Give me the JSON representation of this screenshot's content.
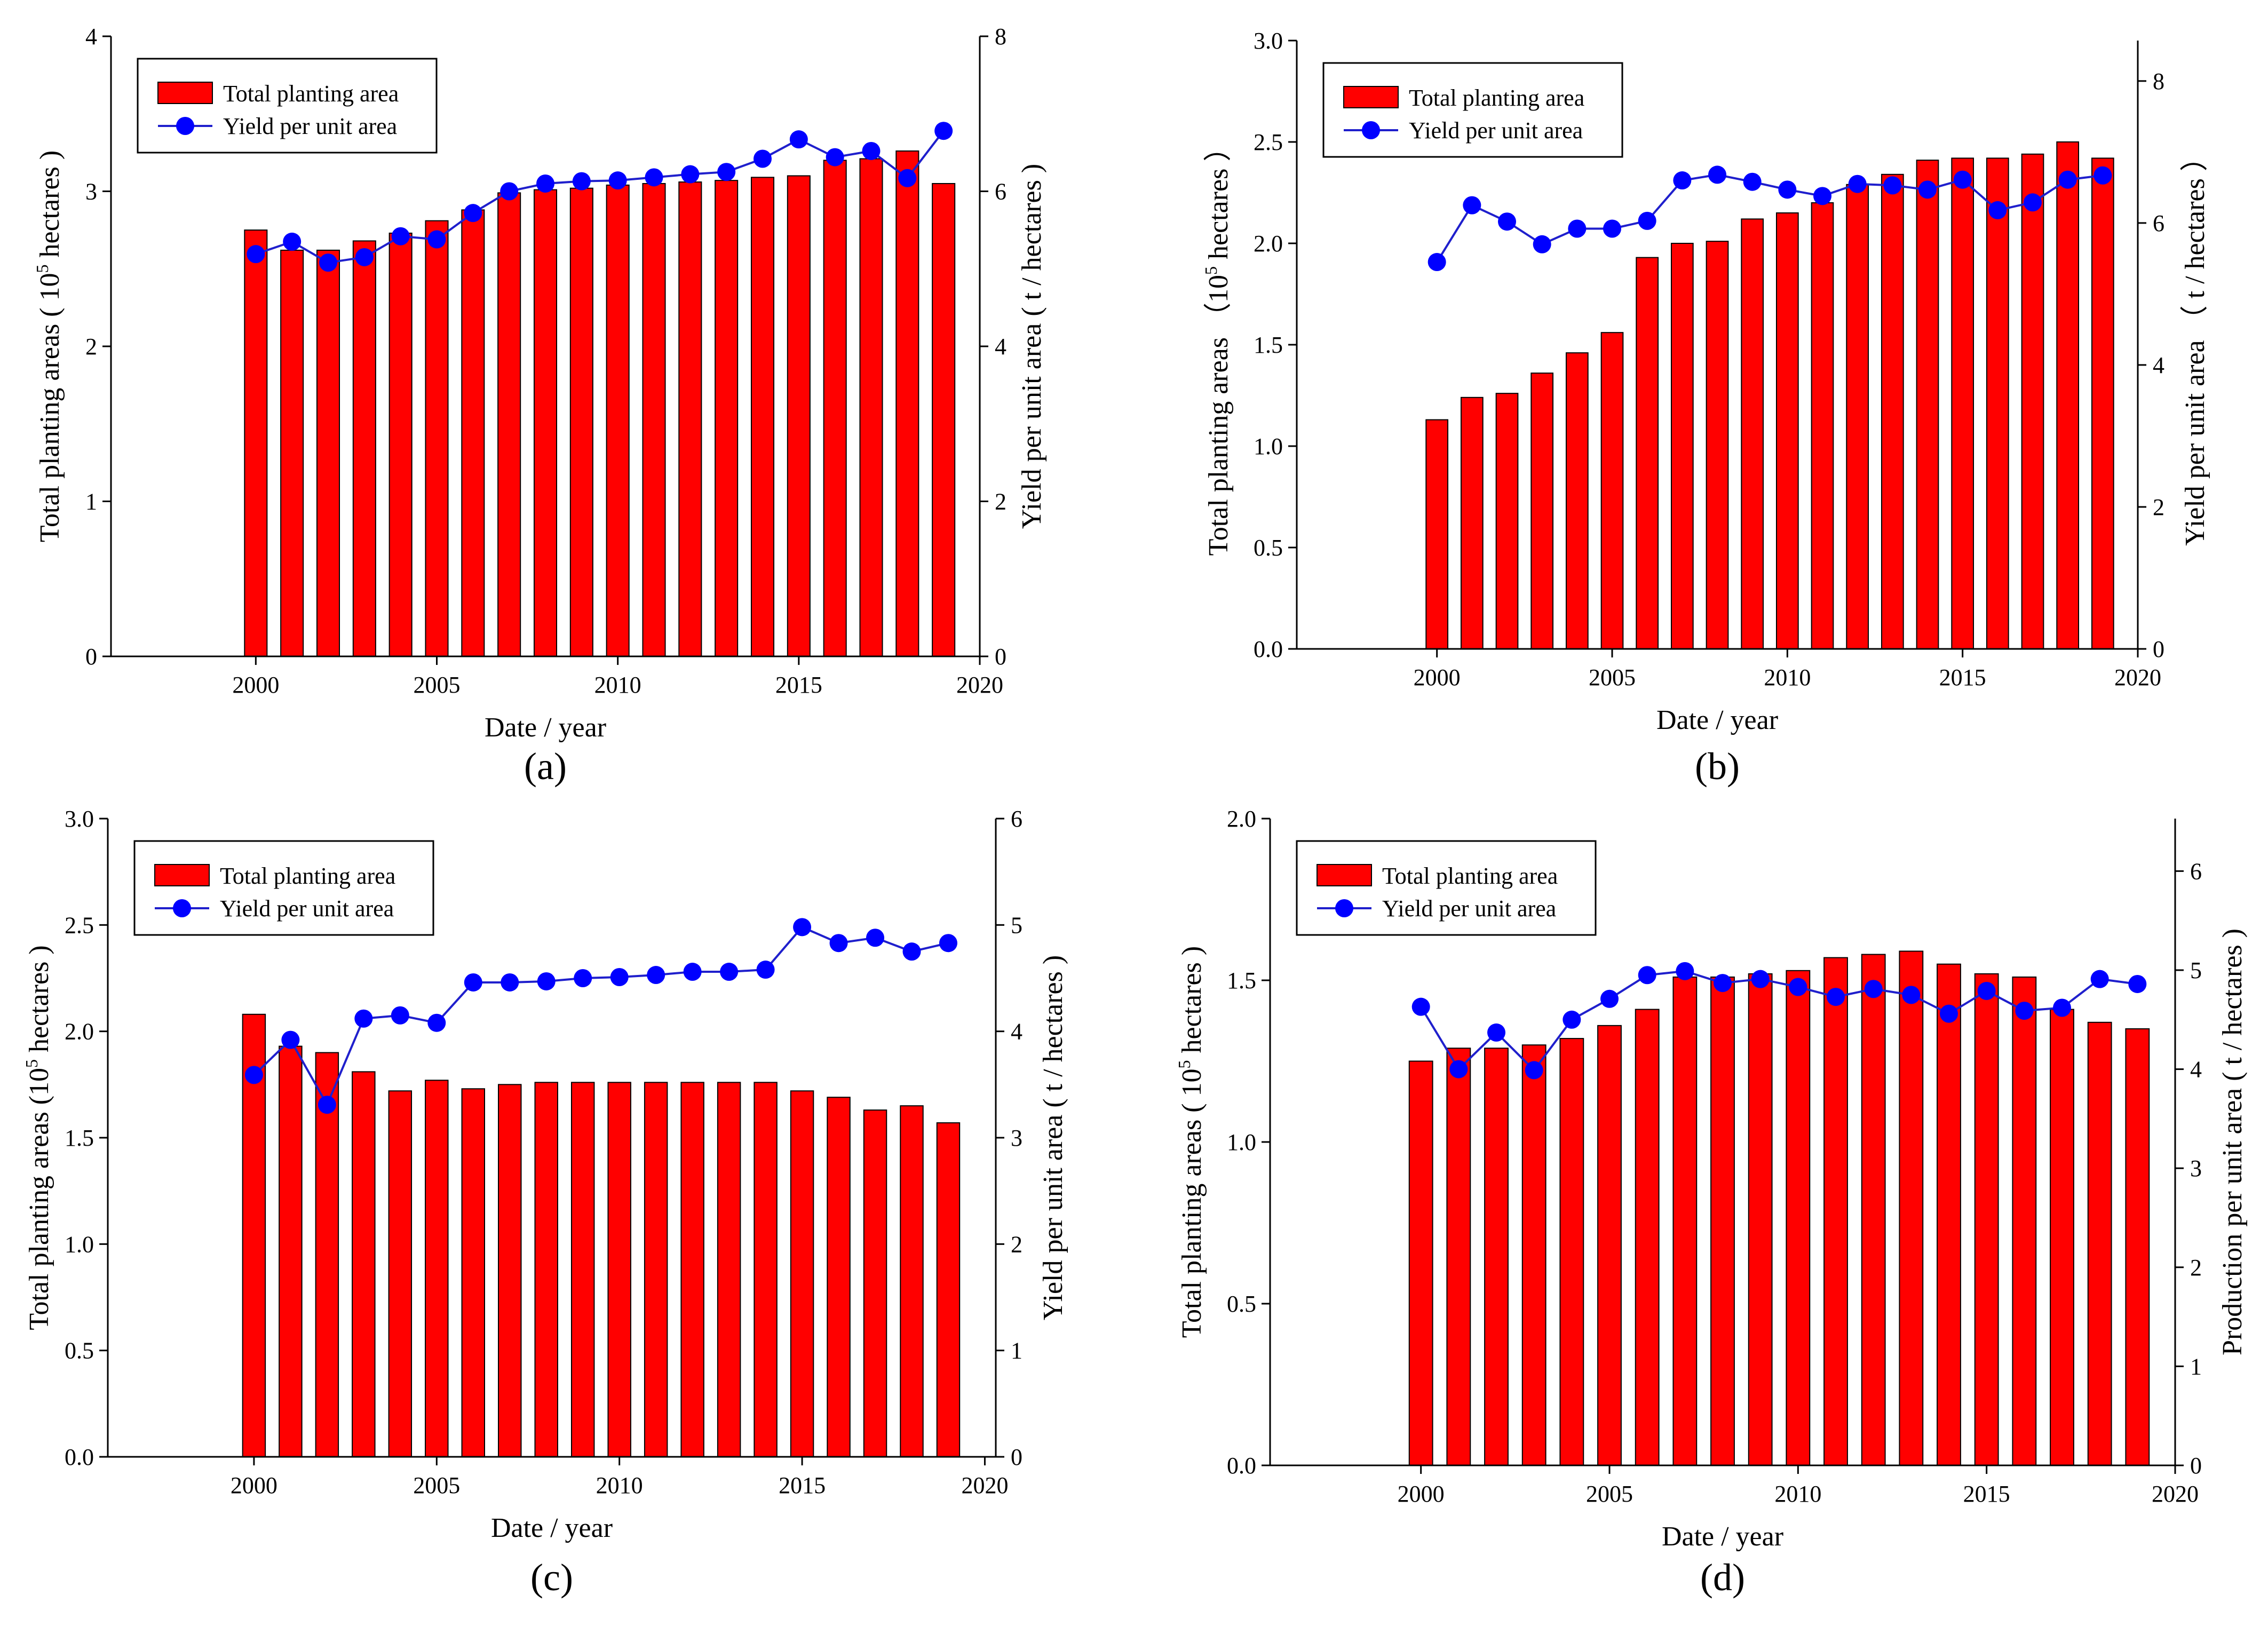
{
  "colors": {
    "bar": "#ff0000",
    "bar_edge": "#000000",
    "line": "#1f1fcc",
    "marker": "#0000ff"
  },
  "chart_data": [
    {
      "panel_label": "(a)",
      "type": "bar+line",
      "x": [
        2000,
        2001,
        2002,
        2003,
        2004,
        2005,
        2006,
        2007,
        2008,
        2009,
        2010,
        2011,
        2012,
        2013,
        2014,
        2015,
        2016,
        2017,
        2018,
        2019
      ],
      "xlabel": "Date / year",
      "xlim": [
        1996,
        2020
      ],
      "xticks": [
        2000,
        2005,
        2010,
        2015,
        2020
      ],
      "ylabel_left_pre": "Total planting areas ( 10",
      "ylabel_left_sup": "5",
      "ylabel_left_post": " hectares )",
      "ylabel_right": "Yield per unit area ( t / hectares )",
      "ylim_left": [
        0,
        4
      ],
      "yticks_left": [
        "0",
        "1",
        "2",
        "3",
        "4"
      ],
      "ylim_right": [
        0,
        8
      ],
      "yticks_right": [
        "0",
        "2",
        "4",
        "6",
        "8"
      ],
      "legend": [
        "Total  planting area",
        "Yield per unit area"
      ],
      "legend_position": "top-left",
      "series": [
        {
          "name": "Total  planting area",
          "axis": "left",
          "kind": "bar",
          "values": [
            2.75,
            2.62,
            2.62,
            2.68,
            2.73,
            2.81,
            2.88,
            2.99,
            3.01,
            3.02,
            3.04,
            3.05,
            3.06,
            3.07,
            3.09,
            3.1,
            3.2,
            3.21,
            3.26,
            3.05
          ]
        },
        {
          "name": "Yield per unit area",
          "axis": "right",
          "kind": "line",
          "values": [
            5.19,
            5.35,
            5.08,
            5.15,
            5.42,
            5.38,
            5.72,
            6.0,
            6.1,
            6.13,
            6.14,
            6.18,
            6.22,
            6.25,
            6.42,
            6.67,
            6.44,
            6.52,
            6.17,
            6.78
          ]
        }
      ]
    },
    {
      "panel_label": "(b)",
      "type": "bar+line",
      "x": [
        2000,
        2001,
        2002,
        2003,
        2004,
        2005,
        2006,
        2007,
        2008,
        2009,
        2010,
        2011,
        2012,
        2013,
        2014,
        2015,
        2016,
        2017,
        2018,
        2019
      ],
      "xlabel": "Date / year",
      "xlim": [
        1996,
        2020
      ],
      "xticks": [
        2000,
        2005,
        2010,
        2015,
        2020
      ],
      "ylabel_left_pre": "Total planting areas  （10",
      "ylabel_left_sup": "5",
      "ylabel_left_post": " hectares  ）",
      "ylabel_right": "Yield per unit area  （ t / hectares  ）",
      "ylim_left": [
        0,
        3
      ],
      "yticks_left": [
        "0.0",
        "0.5",
        "1.0",
        "1.5",
        "2.0",
        "2.5",
        "3.0"
      ],
      "ylim_right": [
        0,
        8.57
      ],
      "yticks_right": [
        "0",
        "2",
        "4",
        "6",
        "8"
      ],
      "legend": [
        "Total  planting area",
        "Yield per unit area"
      ],
      "legend_position": "top-left",
      "series": [
        {
          "name": "Total  planting area",
          "axis": "left",
          "kind": "bar",
          "values": [
            1.13,
            1.24,
            1.26,
            1.36,
            1.46,
            1.56,
            1.93,
            2.0,
            2.01,
            2.12,
            2.15,
            2.2,
            2.29,
            2.34,
            2.41,
            2.42,
            2.42,
            2.44,
            2.5,
            2.42
          ]
        },
        {
          "name": "Yield per unit area",
          "axis": "right",
          "kind": "line",
          "values": [
            5.45,
            6.25,
            6.02,
            5.7,
            5.92,
            5.92,
            6.03,
            6.6,
            6.68,
            6.58,
            6.47,
            6.38,
            6.55,
            6.53,
            6.47,
            6.61,
            6.18,
            6.29,
            6.61,
            6.67
          ]
        }
      ]
    },
    {
      "panel_label": "(c)",
      "type": "bar+line",
      "x": [
        2000,
        2001,
        2002,
        2003,
        2004,
        2005,
        2006,
        2007,
        2008,
        2009,
        2010,
        2011,
        2012,
        2013,
        2014,
        2015,
        2016,
        2017,
        2018,
        2019
      ],
      "xlabel": "Date / year",
      "xlim": [
        1996,
        2020.3
      ],
      "xticks": [
        2000,
        2005,
        2010,
        2015,
        2020
      ],
      "ylabel_left_pre": "Total planting areas (10",
      "ylabel_left_sup": "5",
      "ylabel_left_post": " hectares )",
      "ylabel_right": "Yield per unit area ( t / hectares )",
      "ylim_left": [
        0,
        3
      ],
      "yticks_left": [
        "0.0",
        "0.5",
        "1.0",
        "1.5",
        "2.0",
        "2.5",
        "3.0"
      ],
      "ylim_right": [
        0,
        6
      ],
      "yticks_right": [
        "0",
        "1",
        "2",
        "3",
        "4",
        "5",
        "6"
      ],
      "legend": [
        "Total  planting area",
        "Yield per unit area"
      ],
      "legend_position": "top-left",
      "series": [
        {
          "name": "Total  planting area",
          "axis": "left",
          "kind": "bar",
          "values": [
            2.08,
            1.93,
            1.9,
            1.81,
            1.72,
            1.77,
            1.73,
            1.75,
            1.76,
            1.76,
            1.76,
            1.76,
            1.76,
            1.76,
            1.76,
            1.72,
            1.69,
            1.63,
            1.65,
            1.57
          ]
        },
        {
          "name": "Yield per unit area",
          "axis": "right",
          "kind": "line",
          "values": [
            3.59,
            3.92,
            3.31,
            4.12,
            4.15,
            4.08,
            4.46,
            4.46,
            4.47,
            4.5,
            4.51,
            4.53,
            4.56,
            4.56,
            4.58,
            4.98,
            4.83,
            4.88,
            4.75,
            4.83
          ]
        }
      ]
    },
    {
      "panel_label": "(d)",
      "type": "bar+line",
      "x": [
        2000,
        2001,
        2002,
        2003,
        2004,
        2005,
        2006,
        2007,
        2008,
        2009,
        2010,
        2011,
        2012,
        2013,
        2014,
        2015,
        2016,
        2017,
        2018,
        2019
      ],
      "xlabel": "Date / year",
      "xlim": [
        1996,
        2020
      ],
      "xticks": [
        2000,
        2005,
        2010,
        2015,
        2020
      ],
      "ylabel_left_pre": "Total planting areas ( 10",
      "ylabel_left_sup": "5",
      "ylabel_left_post": " hectares )",
      "ylabel_right": "Production per unit area ( t / hectares )",
      "ylim_left": [
        0,
        2
      ],
      "yticks_left": [
        "0.0",
        "0.5",
        "1.0",
        "1.5",
        "2.0"
      ],
      "ylim_right": [
        0,
        6.53
      ],
      "yticks_right": [
        "0",
        "1",
        "2",
        "3",
        "4",
        "5",
        "6"
      ],
      "legend": [
        "Total  planting area",
        "Yield per unit area"
      ],
      "legend_position": "top-left",
      "series": [
        {
          "name": "Total  planting area",
          "axis": "left",
          "kind": "bar",
          "values": [
            1.25,
            1.29,
            1.29,
            1.3,
            1.32,
            1.36,
            1.41,
            1.51,
            1.51,
            1.52,
            1.53,
            1.57,
            1.58,
            1.59,
            1.55,
            1.52,
            1.51,
            1.41,
            1.37,
            1.35
          ]
        },
        {
          "name": "Yield per unit area",
          "axis": "right",
          "kind": "line",
          "values": [
            4.63,
            4.0,
            4.37,
            3.99,
            4.5,
            4.71,
            4.95,
            4.99,
            4.87,
            4.91,
            4.83,
            4.73,
            4.81,
            4.75,
            4.56,
            4.79,
            4.59,
            4.62,
            4.91,
            4.86
          ]
        }
      ]
    }
  ]
}
